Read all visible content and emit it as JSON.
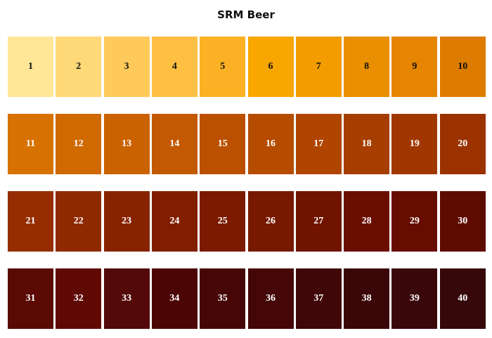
{
  "title": "SRM Beer",
  "columns": 10,
  "swatches": [
    {
      "label": "1",
      "color": "#FFE699",
      "text_color": "#111111"
    },
    {
      "label": "2",
      "color": "#FFD878",
      "text_color": "#111111"
    },
    {
      "label": "3",
      "color": "#FFCA5A",
      "text_color": "#111111"
    },
    {
      "label": "4",
      "color": "#FFBF42",
      "text_color": "#111111"
    },
    {
      "label": "5",
      "color": "#FBB123",
      "text_color": "#111111"
    },
    {
      "label": "6",
      "color": "#F8A600",
      "text_color": "#111111"
    },
    {
      "label": "7",
      "color": "#F39C00",
      "text_color": "#111111"
    },
    {
      "label": "8",
      "color": "#EA8F00",
      "text_color": "#111111"
    },
    {
      "label": "9",
      "color": "#E58500",
      "text_color": "#111111"
    },
    {
      "label": "10",
      "color": "#DE7C00",
      "text_color": "#111111"
    },
    {
      "label": "11",
      "color": "#D77200",
      "text_color": "#ffffff"
    },
    {
      "label": "12",
      "color": "#CF6900",
      "text_color": "#ffffff"
    },
    {
      "label": "13",
      "color": "#CB6200",
      "text_color": "#ffffff"
    },
    {
      "label": "14",
      "color": "#C35900",
      "text_color": "#ffffff"
    },
    {
      "label": "15",
      "color": "#BB5100",
      "text_color": "#ffffff"
    },
    {
      "label": "16",
      "color": "#B54C00",
      "text_color": "#ffffff"
    },
    {
      "label": "17",
      "color": "#B04500",
      "text_color": "#ffffff"
    },
    {
      "label": "18",
      "color": "#A63E00",
      "text_color": "#ffffff"
    },
    {
      "label": "19",
      "color": "#A13700",
      "text_color": "#ffffff"
    },
    {
      "label": "20",
      "color": "#9B3200",
      "text_color": "#ffffff"
    },
    {
      "label": "21",
      "color": "#952D00",
      "text_color": "#ffffff"
    },
    {
      "label": "22",
      "color": "#8E2900",
      "text_color": "#ffffff"
    },
    {
      "label": "23",
      "color": "#882300",
      "text_color": "#ffffff"
    },
    {
      "label": "24",
      "color": "#821E00",
      "text_color": "#ffffff"
    },
    {
      "label": "25",
      "color": "#7B1A00",
      "text_color": "#ffffff"
    },
    {
      "label": "26",
      "color": "#771900",
      "text_color": "#ffffff"
    },
    {
      "label": "27",
      "color": "#701400",
      "text_color": "#ffffff"
    },
    {
      "label": "28",
      "color": "#6A0E00",
      "text_color": "#ffffff"
    },
    {
      "label": "29",
      "color": "#660D00",
      "text_color": "#ffffff"
    },
    {
      "label": "30",
      "color": "#5E0B00",
      "text_color": "#ffffff"
    },
    {
      "label": "31",
      "color": "#5A0A02",
      "text_color": "#ffffff"
    },
    {
      "label": "32",
      "color": "#600903",
      "text_color": "#ffffff"
    },
    {
      "label": "33",
      "color": "#520907",
      "text_color": "#ffffff"
    },
    {
      "label": "34",
      "color": "#4C0505",
      "text_color": "#ffffff"
    },
    {
      "label": "35",
      "color": "#470606",
      "text_color": "#ffffff"
    },
    {
      "label": "36",
      "color": "#440607",
      "text_color": "#ffffff"
    },
    {
      "label": "37",
      "color": "#3F0708",
      "text_color": "#ffffff"
    },
    {
      "label": "38",
      "color": "#3B0607",
      "text_color": "#ffffff"
    },
    {
      "label": "39",
      "color": "#3A070B",
      "text_color": "#ffffff"
    },
    {
      "label": "40",
      "color": "#36080A",
      "text_color": "#ffffff"
    }
  ]
}
